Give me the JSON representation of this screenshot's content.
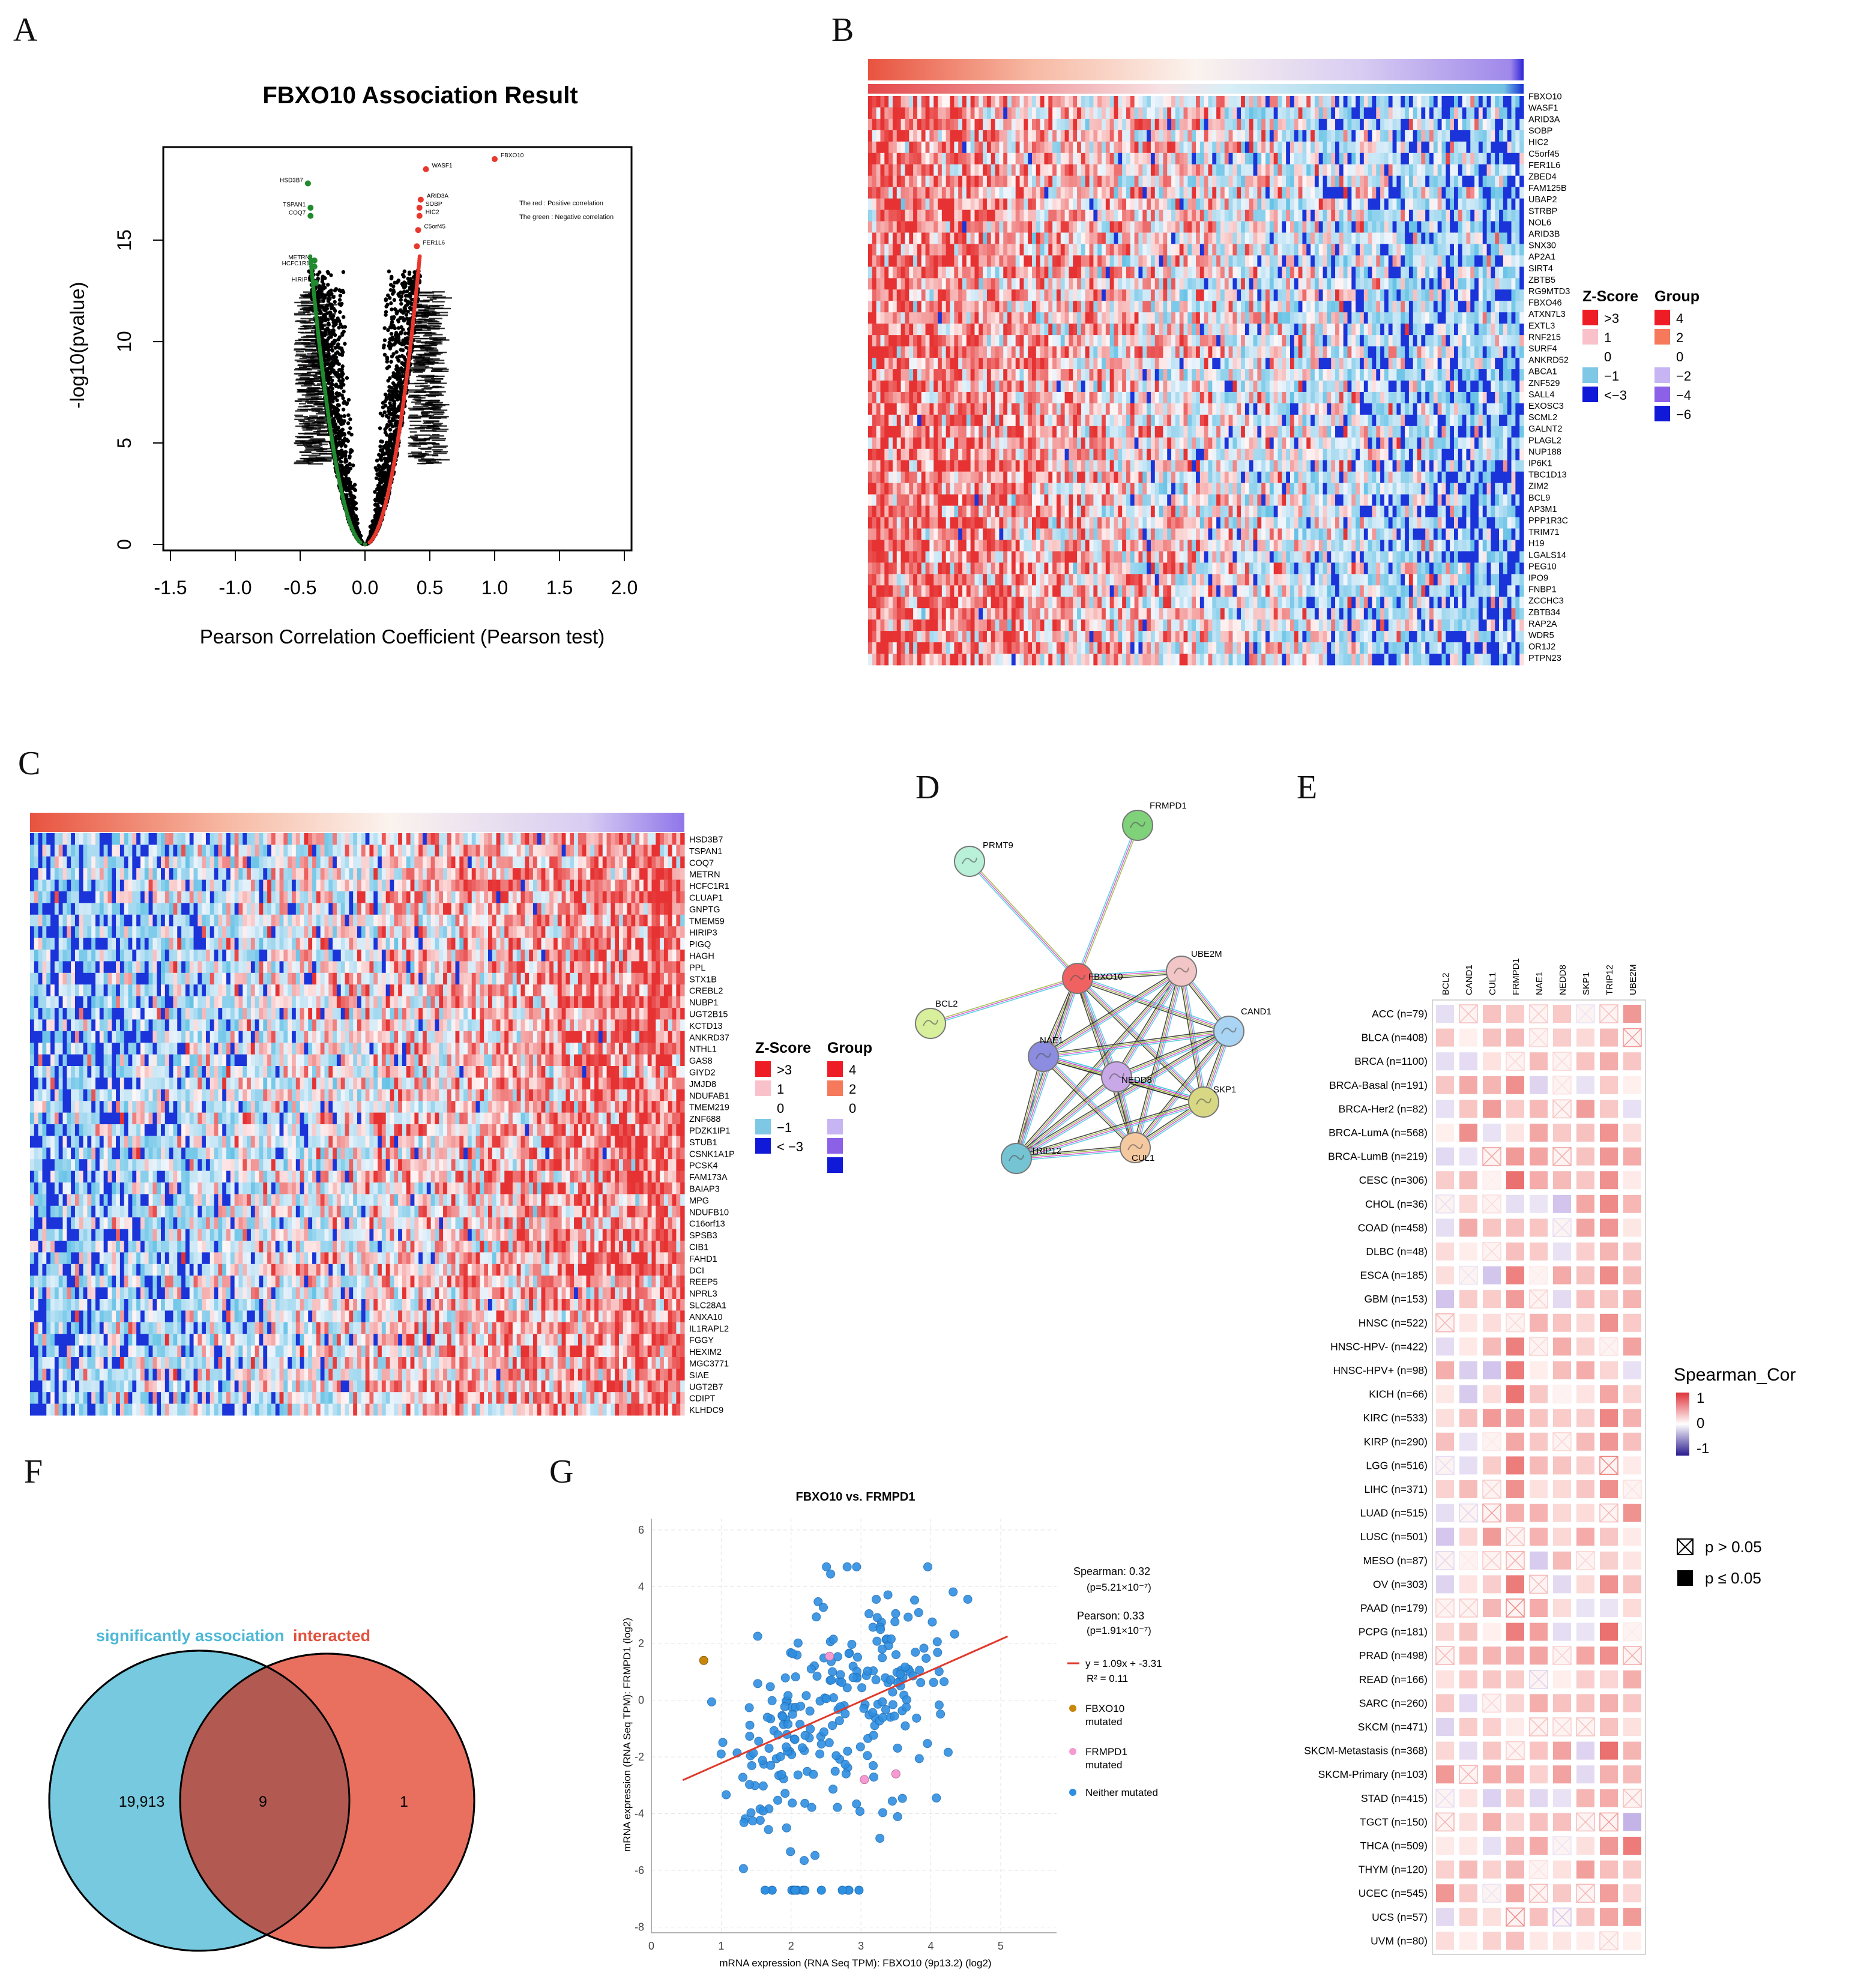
{
  "panel_labels": [
    "A",
    "B",
    "C",
    "D",
    "E",
    "F",
    "G"
  ],
  "colors": {
    "red": "#e8382e",
    "green": "#1f8a2e",
    "blue": "#0a21d6",
    "teal": "#76c9de",
    "salmon": "#e9705f",
    "scatter": "#2f8fe0"
  },
  "chart_data": [
    {
      "id": "A",
      "type": "scatter",
      "title": "FBXO10 Association Result",
      "xlabel": "Pearson Correlation Coefficient (Pearson test)",
      "ylabel": "-log10(pvalue)",
      "xlim": [
        -1.5,
        2.0
      ],
      "ylim": [
        0,
        19
      ],
      "xticks": [
        "-1.5",
        "-1.0",
        "-0.5",
        "0.0",
        "0.5",
        "1.0",
        "1.5",
        "2.0"
      ],
      "yticks": [
        "0",
        "5",
        "10",
        "15"
      ],
      "legend_text": [
        "The red : Positive correlation",
        "The green : Negative correlation"
      ],
      "positive_points": [
        {
          "label": "FBXO10",
          "x": 1.0,
          "y": 19.0
        },
        {
          "label": "WASF1",
          "x": 0.47,
          "y": 18.5
        },
        {
          "label": "ARID3A",
          "x": 0.43,
          "y": 17.0
        },
        {
          "label": "SOBP",
          "x": 0.42,
          "y": 16.6
        },
        {
          "label": "HIC2",
          "x": 0.42,
          "y": 16.2
        },
        {
          "label": "C5orf45",
          "x": 0.41,
          "y": 15.5
        },
        {
          "label": "FER1L6",
          "x": 0.4,
          "y": 14.7
        }
      ],
      "negative_points": [
        {
          "label": "HSD3B7",
          "x": -0.44,
          "y": 17.8
        },
        {
          "label": "TSPAN1",
          "x": -0.42,
          "y": 16.6
        },
        {
          "label": "COQ7",
          "x": -0.42,
          "y": 16.2
        },
        {
          "label": "METRN",
          "x": -0.39,
          "y": 14.0
        },
        {
          "label": "HCFC1R1",
          "x": -0.39,
          "y": 13.7
        },
        {
          "label": "HIRIP3",
          "x": -0.38,
          "y": 12.9
        }
      ]
    },
    {
      "id": "B",
      "type": "heatmap",
      "genes": [
        "FBXO10",
        "WASF1",
        "ARID3A",
        "SOBP",
        "HIC2",
        "C5orf45",
        "FER1L6",
        "ZBED4",
        "FAM125B",
        "UBAP2",
        "STRBP",
        "NOL6",
        "ARID3B",
        "SNX30",
        "AP2A1",
        "SIRT4",
        "ZBTB5",
        "RG9MTD3",
        "FBXO46",
        "ATXN7L3",
        "EXTL3",
        "RNF215",
        "SURF4",
        "ANKRD52",
        "ABCA1",
        "ZNF529",
        "SALL4",
        "EXOSC3",
        "SCML2",
        "GALNT2",
        "PLAGL2",
        "NUP188",
        "IP6K1",
        "TBC1D13",
        "ZIM2",
        "BCL9",
        "AP3M1",
        "PPP1R3C",
        "TRIM71",
        "H19",
        "LGALS14",
        "PEG10",
        "IPO9",
        "FNBP1",
        "ZCCHC3",
        "ZBTB34",
        "RAP2A",
        "WDR5",
        "OR1J2",
        "PTPN23"
      ],
      "legend": {
        "zscore_title": "Z-Score",
        "zscore_labels": [
          ">3",
          "1",
          "0",
          "−1",
          "<−3"
        ],
        "group_title": "Group",
        "group_labels": [
          "4",
          "2",
          "0",
          "−2",
          "−4",
          "−6"
        ]
      }
    },
    {
      "id": "C",
      "type": "heatmap",
      "genes": [
        "HSD3B7",
        "TSPAN1",
        "COQ7",
        "METRN",
        "HCFC1R1",
        "CLUAP1",
        "GNPTG",
        "TMEM59",
        "HIRIP3",
        "PIGQ",
        "HAGH",
        "PPL",
        "STX1B",
        "CREBL2",
        "NUBP1",
        "UGT2B15",
        "KCTD13",
        "ANKRD37",
        "NTHL1",
        "GAS8",
        "GIYD2",
        "JMJD8",
        "NDUFAB1",
        "TMEM219",
        "ZNF688",
        "PDZK1IP1",
        "STUB1",
        "CSNK1A1P",
        "PCSK4",
        "FAM173A",
        "BAIAP3",
        "MPG",
        "NDUFB10",
        "C16orf13",
        "SPSB3",
        "CIB1",
        "FAHD1",
        "DCI",
        "REEP5",
        "NPRL3",
        "SLC28A1",
        "ANXA10",
        "IL1RAPL2",
        "FGGY",
        "HEXIM2",
        "MGC3771",
        "SIAE",
        "UGT2B7",
        "CDIPT",
        "KLHDC9"
      ],
      "legend": {
        "zscore_title": "Z-Score",
        "zscore_labels": [
          ">3",
          "1",
          "0",
          "−1",
          "< −3"
        ],
        "group_title": "Group",
        "group_labels": [
          "4",
          "2",
          "0"
        ]
      }
    },
    {
      "id": "D",
      "type": "network",
      "nodes": [
        {
          "name": "FRMPD1",
          "color": "#7fd17a"
        },
        {
          "name": "PRMT9",
          "color": "#b8f0d8"
        },
        {
          "name": "FBXO10",
          "color": "#f06262"
        },
        {
          "name": "UBE2M",
          "color": "#f2c6c6"
        },
        {
          "name": "CAND1",
          "color": "#a9d4f3"
        },
        {
          "name": "BCL2",
          "color": "#d8ef9c"
        },
        {
          "name": "NAE1",
          "color": "#8c8ce0"
        },
        {
          "name": "NEDD8",
          "color": "#c9a8e8"
        },
        {
          "name": "SKP1",
          "color": "#d8d884"
        },
        {
          "name": "CUL1",
          "color": "#f5c9a0"
        },
        {
          "name": "TRIP12",
          "color": "#74c4d4"
        }
      ]
    },
    {
      "id": "E",
      "type": "heatmap",
      "columns": [
        "BCL2",
        "CAND1",
        "CUL1",
        "FRMPD1",
        "NAE1",
        "NEDD8",
        "SKP1",
        "TRIP12",
        "UBE2M"
      ],
      "rows": [
        "ACC (n=79)",
        "BLCA (n=408)",
        "BRCA (n=1100)",
        "BRCA-Basal (n=191)",
        "BRCA-Her2 (n=82)",
        "BRCA-LumA (n=568)",
        "BRCA-LumB (n=219)",
        "CESC (n=306)",
        "CHOL (n=36)",
        "COAD (n=458)",
        "DLBC (n=48)",
        "ESCA (n=185)",
        "GBM (n=153)",
        "HNSC (n=522)",
        "HNSC-HPV- (n=422)",
        "HNSC-HPV+ (n=98)",
        "KICH (n=66)",
        "KIRC (n=533)",
        "KIRP (n=290)",
        "LGG (n=516)",
        "LIHC (n=371)",
        "LUAD (n=515)",
        "LUSC (n=501)",
        "MESO (n=87)",
        "OV (n=303)",
        "PAAD (n=179)",
        "PCPG (n=181)",
        "PRAD (n=498)",
        "READ (n=166)",
        "SARC (n=260)",
        "SKCM (n=471)",
        "SKCM-Metastasis (n=368)",
        "SKCM-Primary (n=103)",
        "STAD (n=415)",
        "TGCT (n=150)",
        "THCA (n=509)",
        "THYM (n=120)",
        "UCEC (n=545)",
        "UCS (n=57)",
        "UVM (n=80)"
      ],
      "legend": {
        "title": "Spearman_Cor",
        "ticks": [
          "1",
          "0",
          "-1"
        ],
        "p_labels": [
          "p > 0.05",
          "p ≤ 0.05"
        ]
      }
    },
    {
      "id": "F",
      "type": "venn",
      "sets": [
        {
          "name": "significantly association",
          "only": "19,913"
        },
        {
          "name": "interacted",
          "only": "1"
        }
      ],
      "overlap": "9"
    },
    {
      "id": "G",
      "type": "scatter",
      "title": "FBXO10 vs. FRMPD1",
      "xlabel": "mRNA expression (RNA Seq TPM): FBXO10 (9p13.2) (log2)",
      "ylabel": "mRNA expression (RNA Seq TPM): FRMPD1 (log2)",
      "xlim": [
        0,
        5.8
      ],
      "ylim": [
        -8.2,
        6.4
      ],
      "xticks": [
        "0",
        "1",
        "2",
        "3",
        "4",
        "5"
      ],
      "yticks": [
        "6",
        "4",
        "2",
        "0",
        "-2",
        "-4",
        "-6",
        "-8"
      ],
      "stats": [
        "Spearman: 0.32",
        "(p=5.21×10⁻⁷)",
        "Pearson: 0.33",
        "(p=1.91×10⁻⁷)",
        "y = 1.09x + -3.31",
        "R² = 0.11"
      ],
      "fit": {
        "slope": 1.09,
        "intercept": -3.31,
        "x_range": [
          0.45,
          5.1
        ]
      },
      "legend": [
        "FBXO10 mutated",
        "FRMPD1 mutated",
        "Neither mutated"
      ]
    }
  ]
}
